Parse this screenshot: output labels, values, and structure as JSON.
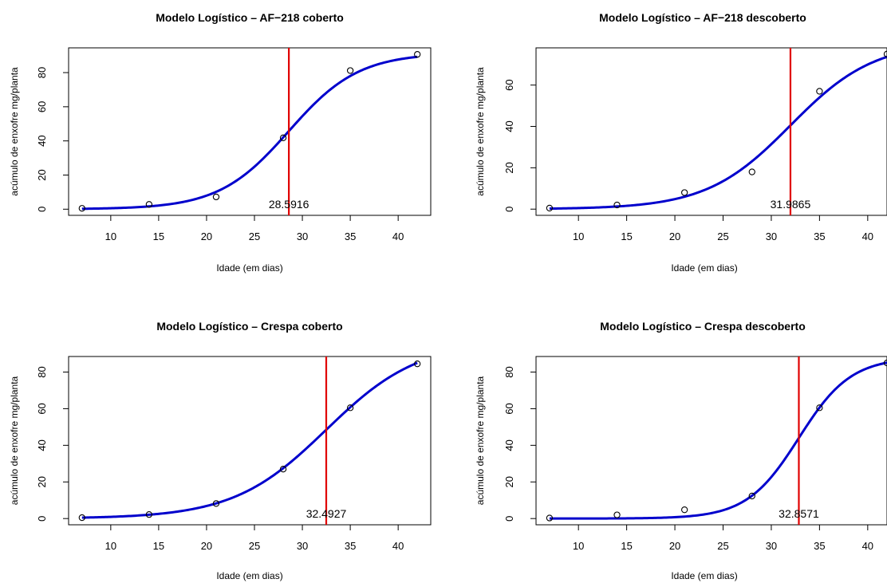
{
  "chart_data": [
    {
      "type": "scatter",
      "title": "Modelo Logístico – AF−218 coberto",
      "xlabel": "Idade (em dias)",
      "ylabel": "acúmulo de enxofre mg/planta",
      "x_ticks": [
        10,
        15,
        20,
        25,
        30,
        35,
        40
      ],
      "y_ticks": [
        0,
        20,
        40,
        60,
        80
      ],
      "xlim": [
        5.6,
        43.4
      ],
      "ylim": [
        -3.6,
        94.5
      ],
      "points": {
        "x": [
          7,
          14,
          21,
          28,
          35,
          42
        ],
        "y": [
          0.5,
          2.8,
          7.2,
          41.8,
          81.2,
          90.7
        ]
      },
      "curve": {
        "asym": 91.5,
        "xmid": 28.5916,
        "scal": 3.65
      },
      "vline": {
        "x": 28.5916,
        "label": "28.5916"
      },
      "colors": {
        "curve": "#0000cc",
        "vline": "#e00000",
        "points": "#000000"
      }
    },
    {
      "type": "scatter",
      "title": "Modelo Logístico – AF−218 descoberto",
      "xlabel": "Idade (em dias)",
      "ylabel": "acúmulo de enxofre mg/planta",
      "x_ticks": [
        10,
        15,
        20,
        25,
        30,
        35,
        40
      ],
      "y_ticks": [
        0,
        20,
        40,
        60
      ],
      "xlim": [
        5.6,
        42.0
      ],
      "ylim": [
        -3.0,
        78.0
      ],
      "points": {
        "x": [
          7,
          14,
          21,
          28,
          35,
          42
        ],
        "y": [
          0.5,
          2.0,
          8.0,
          18.0,
          57.0,
          75.0
        ]
      },
      "curve": {
        "asym": 81.0,
        "xmid": 31.9865,
        "scal": 4.35
      },
      "vline": {
        "x": 31.9865,
        "label": "31.9865"
      },
      "colors": {
        "curve": "#0000cc",
        "vline": "#e00000",
        "points": "#000000"
      }
    },
    {
      "type": "scatter",
      "title": "Modelo Logístico – Crespa coberto",
      "xlabel": "Idade (em dias)",
      "ylabel": "acúmulo de enxofre mg/planta",
      "x_ticks": [
        10,
        15,
        20,
        25,
        30,
        35,
        40
      ],
      "y_ticks": [
        0,
        20,
        40,
        60,
        80
      ],
      "xlim": [
        5.6,
        43.4
      ],
      "ylim": [
        -3.4,
        88.5
      ],
      "points": {
        "x": [
          7,
          14,
          21,
          28,
          35,
          42
        ],
        "y": [
          0.5,
          2.2,
          8.2,
          27.0,
          60.5,
          84.5
        ]
      },
      "curve": {
        "asym": 97.0,
        "xmid": 32.4927,
        "scal": 4.85
      },
      "vline": {
        "x": 32.4927,
        "label": "32.4927"
      },
      "colors": {
        "curve": "#0000cc",
        "vline": "#e00000",
        "points": "#000000"
      }
    },
    {
      "type": "scatter",
      "title": "Modelo Logístico – Crespa descoberto",
      "xlabel": "Idade (em dias)",
      "ylabel": "acúmulo de enxofre mg/planta",
      "x_ticks": [
        10,
        15,
        20,
        25,
        30,
        35,
        40
      ],
      "y_ticks": [
        0,
        20,
        40,
        60,
        80
      ],
      "xlim": [
        5.6,
        42.0
      ],
      "ylim": [
        -3.4,
        88.5
      ],
      "points": {
        "x": [
          7,
          14,
          21,
          28,
          35,
          42
        ],
        "y": [
          0.3,
          2.0,
          4.8,
          12.3,
          60.5,
          85.0
        ]
      },
      "curve": {
        "asym": 88.0,
        "xmid": 32.8571,
        "scal": 2.7
      },
      "vline": {
        "x": 32.8571,
        "label": "32.8571"
      },
      "colors": {
        "curve": "#0000cc",
        "vline": "#e00000",
        "points": "#000000"
      }
    }
  ]
}
